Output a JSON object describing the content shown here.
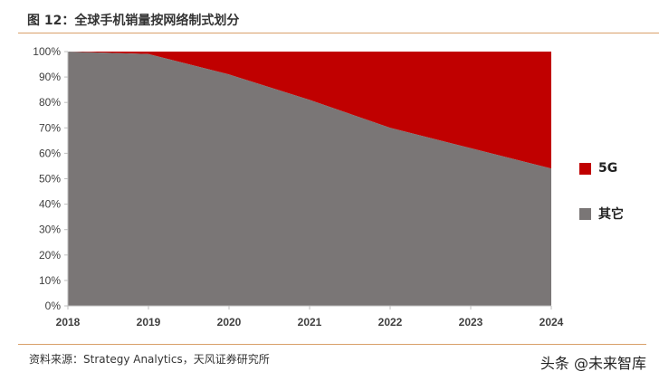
{
  "title": "图 12：全球手机销量按网络制式划分",
  "source": "资料来源：Strategy Analytics，天风证券研究所",
  "watermark": "头条 @未来智库",
  "colors": {
    "5g": "#c00000",
    "other": "#7a7676",
    "rule": "#d9a06a"
  },
  "legend": [
    {
      "label": "5G",
      "color": "#c00000"
    },
    {
      "label": "其它",
      "color": "#7a7676"
    }
  ],
  "chart_data": {
    "type": "area",
    "stacked": true,
    "normalized": true,
    "title": "图 12：全球手机销量按网络制式划分",
    "categories": [
      "2018",
      "2019",
      "2020",
      "2021",
      "2022",
      "2023",
      "2024"
    ],
    "series": [
      {
        "name": "其它",
        "values": [
          100,
          99,
          91,
          81,
          70,
          62,
          54
        ]
      },
      {
        "name": "5G",
        "values": [
          0,
          1,
          9,
          19,
          30,
          38,
          46
        ]
      }
    ],
    "yticks": [
      "0%",
      "10%",
      "20%",
      "30%",
      "40%",
      "50%",
      "60%",
      "70%",
      "80%",
      "90%",
      "100%"
    ],
    "xlabel": "",
    "ylabel": "",
    "ylim": [
      0,
      100
    ],
    "grid": false,
    "legend_position": "right"
  }
}
